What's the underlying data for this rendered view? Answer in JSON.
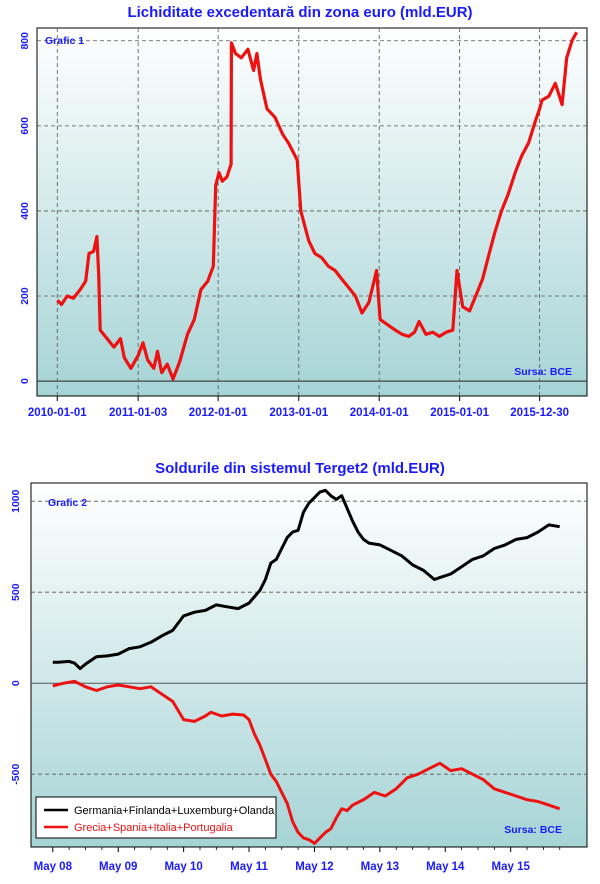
{
  "colors": {
    "title": "#1a1aff",
    "panel_top": "#ffffff",
    "panel_bottom": "#a6d4d6",
    "series_red": "#ee1111",
    "series_black": "#000000",
    "grid": "#555555"
  },
  "chart_data": [
    {
      "type": "line",
      "title": "Lichiditate excedentară din zona euro (mld.EUR)",
      "panel_label": "Grafic 1",
      "source": "Sursa: BCE",
      "xlabel": "",
      "ylabel": "",
      "x_ticks": [
        "2010-01-01",
        "2011-01-03",
        "2012-01-01",
        "2013-01-01",
        "2014-01-01",
        "2015-01-01",
        "2015-12-30"
      ],
      "y_ticks": [
        "0",
        "200",
        "400",
        "600",
        "800"
      ],
      "ylim": [
        -35,
        830
      ],
      "grid": true,
      "series": [
        {
          "color": "#ee1111",
          "points": [
            [
              "2010-01-01",
              190
            ],
            [
              "2010-01-20",
              180
            ],
            [
              "2010-02-15",
              200
            ],
            [
              "2010-03-15",
              195
            ],
            [
              "2010-04-15",
              215
            ],
            [
              "2010-05-10",
              235
            ],
            [
              "2010-05-25",
              300
            ],
            [
              "2010-06-15",
              305
            ],
            [
              "2010-06-30",
              340
            ],
            [
              "2010-07-08",
              250
            ],
            [
              "2010-07-15",
              120
            ],
            [
              "2010-08-15",
              100
            ],
            [
              "2010-09-15",
              80
            ],
            [
              "2010-10-15",
              100
            ],
            [
              "2010-11-01",
              55
            ],
            [
              "2010-12-01",
              30
            ],
            [
              "2011-01-03",
              60
            ],
            [
              "2011-01-25",
              90
            ],
            [
              "2011-02-15",
              50
            ],
            [
              "2011-03-15",
              30
            ],
            [
              "2011-04-01",
              70
            ],
            [
              "2011-04-20",
              20
            ],
            [
              "2011-05-15",
              40
            ],
            [
              "2011-06-10",
              5
            ],
            [
              "2011-07-10",
              45
            ],
            [
              "2011-08-15",
              110
            ],
            [
              "2011-09-15",
              145
            ],
            [
              "2011-10-15",
              215
            ],
            [
              "2011-11-15",
              235
            ],
            [
              "2011-12-10",
              270
            ],
            [
              "2011-12-21",
              460
            ],
            [
              "2012-01-05",
              490
            ],
            [
              "2012-01-20",
              470
            ],
            [
              "2012-02-10",
              480
            ],
            [
              "2012-02-29",
              510
            ],
            [
              "2012-03-01",
              795
            ],
            [
              "2012-03-20",
              770
            ],
            [
              "2012-04-15",
              760
            ],
            [
              "2012-05-15",
              780
            ],
            [
              "2012-06-10",
              730
            ],
            [
              "2012-06-25",
              770
            ],
            [
              "2012-07-11",
              710
            ],
            [
              "2012-08-10",
              640
            ],
            [
              "2012-09-15",
              620
            ],
            [
              "2012-10-20",
              580
            ],
            [
              "2012-11-15",
              560
            ],
            [
              "2012-12-25",
              520
            ],
            [
              "2013-01-10",
              400
            ],
            [
              "2013-02-15",
              330
            ],
            [
              "2013-03-15",
              300
            ],
            [
              "2013-04-15",
              290
            ],
            [
              "2013-05-15",
              270
            ],
            [
              "2013-06-15",
              260
            ],
            [
              "2013-07-15",
              240
            ],
            [
              "2013-08-15",
              220
            ],
            [
              "2013-09-15",
              200
            ],
            [
              "2013-10-15",
              160
            ],
            [
              "2013-11-15",
              185
            ],
            [
              "2013-12-20",
              260
            ],
            [
              "2014-01-05",
              145
            ],
            [
              "2014-02-15",
              130
            ],
            [
              "2014-03-15",
              120
            ],
            [
              "2014-04-15",
              110
            ],
            [
              "2014-05-15",
              105
            ],
            [
              "2014-06-10",
              115
            ],
            [
              "2014-07-01",
              140
            ],
            [
              "2014-08-01",
              110
            ],
            [
              "2014-09-01",
              115
            ],
            [
              "2014-10-01",
              105
            ],
            [
              "2014-11-01",
              115
            ],
            [
              "2014-12-01",
              120
            ],
            [
              "2014-12-20",
              260
            ],
            [
              "2015-01-15",
              175
            ],
            [
              "2015-02-15",
              165
            ],
            [
              "2015-03-15",
              200
            ],
            [
              "2015-04-15",
              240
            ],
            [
              "2015-05-15",
              300
            ],
            [
              "2015-06-10",
              350
            ],
            [
              "2015-07-10",
              400
            ],
            [
              "2015-08-10",
              440
            ],
            [
              "2015-09-10",
              490
            ],
            [
              "2015-10-10",
              530
            ],
            [
              "2015-11-10",
              560
            ],
            [
              "2015-12-10",
              610
            ],
            [
              "2015-12-30",
              640
            ],
            [
              "2016-01-10",
              660
            ],
            [
              "2016-02-10",
              670
            ],
            [
              "2016-03-10",
              700
            ],
            [
              "2016-04-10",
              650
            ],
            [
              "2016-05-01",
              760
            ],
            [
              "2016-05-25",
              800
            ],
            [
              "2016-06-15",
              820
            ]
          ]
        }
      ]
    },
    {
      "type": "line",
      "title": "Soldurile din sistemul Terget2 (mld.EUR)",
      "panel_label": "Grafic 2",
      "source": "Sursa: BCE",
      "xlabel": "",
      "ylabel": "",
      "x_ticks": [
        "May 08",
        "May 09",
        "May 10",
        "May 11",
        "May 12",
        "May 13",
        "May 14",
        "May 15"
      ],
      "y_ticks": [
        "-500",
        "0",
        "500",
        "1000"
      ],
      "ylim": [
        -900,
        1100
      ],
      "grid": true,
      "series": [
        {
          "name": "Germania+Finlanda+Luxemburg+Olanda",
          "color": "#000000",
          "points": [
            [
              "2008-05",
              115
            ],
            [
              "2008-06",
              115
            ],
            [
              "2008-08",
              120
            ],
            [
              "2008-09",
              110
            ],
            [
              "2008-10",
              80
            ],
            [
              "2008-11",
              105
            ],
            [
              "2009-01",
              145
            ],
            [
              "2009-03",
              150
            ],
            [
              "2009-05",
              160
            ],
            [
              "2009-07",
              190
            ],
            [
              "2009-09",
              200
            ],
            [
              "2009-11",
              225
            ],
            [
              "2010-01",
              260
            ],
            [
              "2010-03",
              290
            ],
            [
              "2010-05",
              370
            ],
            [
              "2010-07",
              390
            ],
            [
              "2010-09",
              400
            ],
            [
              "2010-11",
              430
            ],
            [
              "2011-01",
              420
            ],
            [
              "2011-03",
              410
            ],
            [
              "2011-05",
              440
            ],
            [
              "2011-07",
              510
            ],
            [
              "2011-08",
              570
            ],
            [
              "2011-09",
              660
            ],
            [
              "2011-10",
              680
            ],
            [
              "2011-11",
              740
            ],
            [
              "2011-12",
              800
            ],
            [
              "2012-01",
              830
            ],
            [
              "2012-02",
              840
            ],
            [
              "2012-03",
              940
            ],
            [
              "2012-04",
              990
            ],
            [
              "2012-05",
              1020
            ],
            [
              "2012-06",
              1050
            ],
            [
              "2012-07",
              1060
            ],
            [
              "2012-08",
              1030
            ],
            [
              "2012-09",
              1010
            ],
            [
              "2012-10",
              1030
            ],
            [
              "2012-11",
              960
            ],
            [
              "2012-12",
              890
            ],
            [
              "2013-01",
              830
            ],
            [
              "2013-02",
              790
            ],
            [
              "2013-03",
              770
            ],
            [
              "2013-05",
              760
            ],
            [
              "2013-07",
              730
            ],
            [
              "2013-09",
              700
            ],
            [
              "2013-11",
              650
            ],
            [
              "2014-01",
              620
            ],
            [
              "2014-03",
              570
            ],
            [
              "2014-04",
              580
            ],
            [
              "2014-06",
              600
            ],
            [
              "2014-08",
              640
            ],
            [
              "2014-10",
              680
            ],
            [
              "2014-12",
              700
            ],
            [
              "2015-02",
              740
            ],
            [
              "2015-04",
              760
            ],
            [
              "2015-06",
              790
            ],
            [
              "2015-08",
              800
            ],
            [
              "2015-10",
              830
            ],
            [
              "2015-12",
              870
            ],
            [
              "2016-02",
              860
            ]
          ]
        },
        {
          "name": "Grecia+Spania+Italia+Portugalia",
          "color": "#ee1111",
          "points": [
            [
              "2008-05",
              -15
            ],
            [
              "2008-07",
              0
            ],
            [
              "2008-09",
              10
            ],
            [
              "2008-11",
              -20
            ],
            [
              "2009-01",
              -40
            ],
            [
              "2009-03",
              -20
            ],
            [
              "2009-05",
              -10
            ],
            [
              "2009-07",
              -20
            ],
            [
              "2009-09",
              -30
            ],
            [
              "2009-11",
              -20
            ],
            [
              "2010-01",
              -60
            ],
            [
              "2010-03",
              -100
            ],
            [
              "2010-05",
              -200
            ],
            [
              "2010-07",
              -210
            ],
            [
              "2010-09",
              -180
            ],
            [
              "2010-10",
              -160
            ],
            [
              "2010-12",
              -180
            ],
            [
              "2011-02",
              -170
            ],
            [
              "2011-04",
              -175
            ],
            [
              "2011-05",
              -200
            ],
            [
              "2011-06",
              -280
            ],
            [
              "2011-07",
              -340
            ],
            [
              "2011-08",
              -420
            ],
            [
              "2011-09",
              -500
            ],
            [
              "2011-10",
              -540
            ],
            [
              "2011-11",
              -600
            ],
            [
              "2011-12",
              -660
            ],
            [
              "2012-01",
              -760
            ],
            [
              "2012-02",
              -820
            ],
            [
              "2012-03",
              -850
            ],
            [
              "2012-04",
              -860
            ],
            [
              "2012-05",
              -880
            ],
            [
              "2012-06",
              -850
            ],
            [
              "2012-07",
              -820
            ],
            [
              "2012-08",
              -800
            ],
            [
              "2012-09",
              -740
            ],
            [
              "2012-10",
              -690
            ],
            [
              "2012-11",
              -700
            ],
            [
              "2012-12",
              -670
            ],
            [
              "2013-02",
              -640
            ],
            [
              "2013-04",
              -600
            ],
            [
              "2013-06",
              -620
            ],
            [
              "2013-08",
              -580
            ],
            [
              "2013-10",
              -520
            ],
            [
              "2013-12",
              -500
            ],
            [
              "2014-02",
              -470
            ],
            [
              "2014-04",
              -440
            ],
            [
              "2014-06",
              -480
            ],
            [
              "2014-08",
              -470
            ],
            [
              "2014-10",
              -500
            ],
            [
              "2014-12",
              -530
            ],
            [
              "2015-02",
              -580
            ],
            [
              "2015-04",
              -600
            ],
            [
              "2015-06",
              -620
            ],
            [
              "2015-08",
              -640
            ],
            [
              "2015-10",
              -650
            ],
            [
              "2015-12",
              -670
            ],
            [
              "2016-02",
              -690
            ]
          ]
        }
      ]
    }
  ]
}
